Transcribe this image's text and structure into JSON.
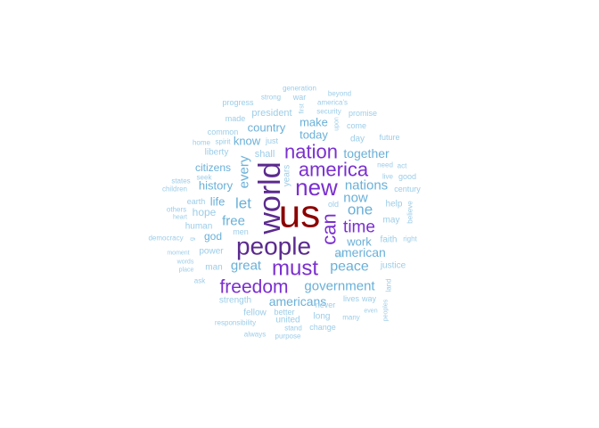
{
  "words": [
    {
      "text": "us",
      "color": "#8b0000",
      "rotated": false
    },
    {
      "text": "world",
      "color": "#5b2a8e",
      "rotated": true
    },
    {
      "text": "people",
      "color": "#5b2a8e",
      "rotated": false
    },
    {
      "text": "new",
      "color": "#7b2fcf",
      "rotated": false
    },
    {
      "text": "nation",
      "color": "#7b2fcf",
      "rotated": false
    },
    {
      "text": "america",
      "color": "#7b2fcf",
      "rotated": false
    },
    {
      "text": "can",
      "color": "#7b2fcf",
      "rotated": true
    },
    {
      "text": "must",
      "color": "#7b2fcf",
      "rotated": false
    },
    {
      "text": "freedom",
      "color": "#7b2fcf",
      "rotated": false
    },
    {
      "text": "time",
      "color": "#7b2fcf",
      "rotated": false
    },
    {
      "text": "every",
      "color": "#6ab0d8",
      "rotated": true
    },
    {
      "text": "government",
      "color": "#6ab0d8",
      "rotated": false
    },
    {
      "text": "peace",
      "color": "#6ab0d8",
      "rotated": false
    },
    {
      "text": "great",
      "color": "#6ab0d8",
      "rotated": false
    },
    {
      "text": "let",
      "color": "#6ab0d8",
      "rotated": false
    },
    {
      "text": "one",
      "color": "#6ab0d8",
      "rotated": false
    },
    {
      "text": "now",
      "color": "#6ab0d8",
      "rotated": false
    },
    {
      "text": "nations",
      "color": "#6ab0d8",
      "rotated": false
    },
    {
      "text": "american",
      "color": "#6ab0d8",
      "rotated": false
    },
    {
      "text": "americans",
      "color": "#6ab0d8",
      "rotated": false
    },
    {
      "text": "free",
      "color": "#6ab0d8",
      "rotated": false
    },
    {
      "text": "work",
      "color": "#6ab0d8",
      "rotated": false
    },
    {
      "text": "together",
      "color": "#6ab0d8",
      "rotated": false
    },
    {
      "text": "today",
      "color": "#6ab0d8",
      "rotated": false
    },
    {
      "text": "make",
      "color": "#6ab0d8",
      "rotated": false
    },
    {
      "text": "country",
      "color": "#6ab0d8",
      "rotated": false
    },
    {
      "text": "history",
      "color": "#6ab0d8",
      "rotated": false
    },
    {
      "text": "citizens",
      "color": "#6ab0d8",
      "rotated": false
    },
    {
      "text": "know",
      "color": "#6ab0d8",
      "rotated": false
    },
    {
      "text": "god",
      "color": "#6ab0d8",
      "rotated": false
    },
    {
      "text": "life",
      "color": "#6ab0d8",
      "rotated": false
    },
    {
      "text": "hope",
      "color": "#9ccde8",
      "rotated": false
    },
    {
      "text": "president",
      "color": "#9ccde8",
      "rotated": false
    },
    {
      "text": "shall",
      "color": "#9ccde8",
      "rotated": false
    },
    {
      "text": "day",
      "color": "#9ccde8",
      "rotated": false
    },
    {
      "text": "years",
      "color": "#9ccde8",
      "rotated": true
    },
    {
      "text": "help",
      "color": "#9ccde8",
      "rotated": false
    },
    {
      "text": "may",
      "color": "#9ccde8",
      "rotated": false
    },
    {
      "text": "faith",
      "color": "#9ccde8",
      "rotated": false
    },
    {
      "text": "justice",
      "color": "#9ccde8",
      "rotated": false
    },
    {
      "text": "power",
      "color": "#9ccde8",
      "rotated": false
    },
    {
      "text": "man",
      "color": "#9ccde8",
      "rotated": false
    },
    {
      "text": "human",
      "color": "#9ccde8",
      "rotated": false
    },
    {
      "text": "earth",
      "color": "#9ccde8",
      "rotated": false
    },
    {
      "text": "liberty",
      "color": "#9ccde8",
      "rotated": false
    },
    {
      "text": "strength",
      "color": "#9ccde8",
      "rotated": false
    },
    {
      "text": "fellow",
      "color": "#9ccde8",
      "rotated": false
    },
    {
      "text": "united",
      "color": "#9ccde8",
      "rotated": false
    },
    {
      "text": "long",
      "color": "#9ccde8",
      "rotated": false
    },
    {
      "text": "never",
      "color": "#9ccde8",
      "rotated": false
    },
    {
      "text": "lives",
      "color": "#9ccde8",
      "rotated": false
    },
    {
      "text": "way",
      "color": "#9ccde8",
      "rotated": false
    },
    {
      "text": "land",
      "color": "#9ccde8",
      "rotated": true
    },
    {
      "text": "better",
      "color": "#9ccde8",
      "rotated": false
    },
    {
      "text": "change",
      "color": "#9ccde8",
      "rotated": false
    },
    {
      "text": "responsibility",
      "color": "#9ccde8",
      "rotated": false
    },
    {
      "text": "stand",
      "color": "#9ccde8",
      "rotated": false
    },
    {
      "text": "always",
      "color": "#9ccde8",
      "rotated": false
    },
    {
      "text": "purpose",
      "color": "#9ccde8",
      "rotated": false
    },
    {
      "text": "many",
      "color": "#9ccde8",
      "rotated": false
    },
    {
      "text": "peoples",
      "color": "#9ccde8",
      "rotated": true
    },
    {
      "text": "even",
      "color": "#9ccde8",
      "rotated": false
    },
    {
      "text": "believe",
      "color": "#9ccde8",
      "rotated": true
    },
    {
      "text": "right",
      "color": "#9ccde8",
      "rotated": false
    },
    {
      "text": "century",
      "color": "#9ccde8",
      "rotated": false
    },
    {
      "text": "live",
      "color": "#9ccde8",
      "rotated": false
    },
    {
      "text": "good",
      "color": "#9ccde8",
      "rotated": false
    },
    {
      "text": "need",
      "color": "#9ccde8",
      "rotated": false
    },
    {
      "text": "act",
      "color": "#9ccde8",
      "rotated": false
    },
    {
      "text": "future",
      "color": "#9ccde8",
      "rotated": false
    },
    {
      "text": "come",
      "color": "#9ccde8",
      "rotated": false
    },
    {
      "text": "promise",
      "color": "#9ccde8",
      "rotated": false
    },
    {
      "text": "security",
      "color": "#9ccde8",
      "rotated": false
    },
    {
      "text": "america's",
      "color": "#9ccde8",
      "rotated": false
    },
    {
      "text": "beyond",
      "color": "#9ccde8",
      "rotated": false
    },
    {
      "text": "generation",
      "color": "#9ccde8",
      "rotated": false
    },
    {
      "text": "war",
      "color": "#9ccde8",
      "rotated": false
    },
    {
      "text": "strong",
      "color": "#9ccde8",
      "rotated": false
    },
    {
      "text": "progress",
      "color": "#9ccde8",
      "rotated": false
    },
    {
      "text": "made",
      "color": "#9ccde8",
      "rotated": false
    },
    {
      "text": "common",
      "color": "#9ccde8",
      "rotated": false
    },
    {
      "text": "home",
      "color": "#9ccde8",
      "rotated": false
    },
    {
      "text": "spirit",
      "color": "#9ccde8",
      "rotated": false
    },
    {
      "text": "just",
      "color": "#9ccde8",
      "rotated": false
    },
    {
      "text": "states",
      "color": "#9ccde8",
      "rotated": false
    },
    {
      "text": "seek",
      "color": "#9ccde8",
      "rotated": false
    },
    {
      "text": "children",
      "color": "#9ccde8",
      "rotated": false
    },
    {
      "text": "others",
      "color": "#9ccde8",
      "rotated": false
    },
    {
      "text": "heart",
      "color": "#9ccde8",
      "rotated": false
    },
    {
      "text": "democracy",
      "color": "#9ccde8",
      "rotated": false
    },
    {
      "text": "moment",
      "color": "#9ccde8",
      "rotated": false
    },
    {
      "text": "words",
      "color": "#9ccde8",
      "rotated": false
    },
    {
      "text": "place",
      "color": "#9ccde8",
      "rotated": false
    },
    {
      "text": "ask",
      "color": "#9ccde8",
      "rotated": false
    },
    {
      "text": "men",
      "color": "#9ccde8",
      "rotated": false
    },
    {
      "text": "old",
      "color": "#9ccde8",
      "rotated": false
    },
    {
      "text": "still",
      "color": "#9ccde8",
      "rotated": false
    },
    {
      "text": "first",
      "color": "#9ccde8",
      "rotated": true
    },
    {
      "text": "upon",
      "color": "#9ccde8",
      "rotated": true
    },
    {
      "text": "g",
      "color": "#9ccde8",
      "rotated": true
    }
  ]
}
